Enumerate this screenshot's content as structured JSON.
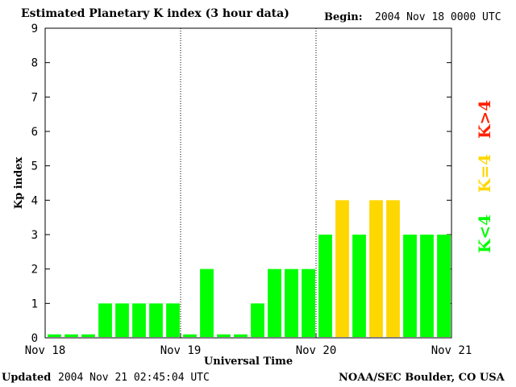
{
  "header": {
    "title": "Estimated Planetary K index (3 hour data)",
    "begin_label": "Begin:",
    "begin_value": "2004 Nov 18 0000 UTC"
  },
  "footer": {
    "updated_label": "Updated",
    "updated_value": "2004 Nov 21 02:45:04 UTC",
    "credit": "NOAA/SEC Boulder, CO USA"
  },
  "legend": [
    {
      "label": "K<4",
      "color": "#00ff00"
    },
    {
      "label": "K=4",
      "color": "#ffd700"
    },
    {
      "label": "K>4",
      "color": "#ff2200"
    }
  ],
  "chart_data": {
    "type": "bar",
    "title": "Estimated Planetary K index (3 hour data)",
    "xlabel": "Universal Time",
    "ylabel": "Kp index",
    "ylim": [
      0,
      9
    ],
    "y_ticks": [
      0,
      1,
      2,
      3,
      4,
      5,
      6,
      7,
      8,
      9
    ],
    "x_tick_labels": [
      "Nov 18",
      "Nov 19",
      "Nov 20",
      "Nov 21"
    ],
    "day_dividers": [
      "Nov 19",
      "Nov 20"
    ],
    "values": [
      0,
      0,
      0,
      1,
      1,
      1,
      1,
      1,
      0,
      2,
      0,
      0,
      1,
      2,
      2,
      2,
      3,
      4,
      3,
      4,
      4,
      3,
      3,
      3
    ],
    "colors": {
      "below": "#00ff00",
      "equal": "#ffd700",
      "above": "#ff2200"
    }
  }
}
